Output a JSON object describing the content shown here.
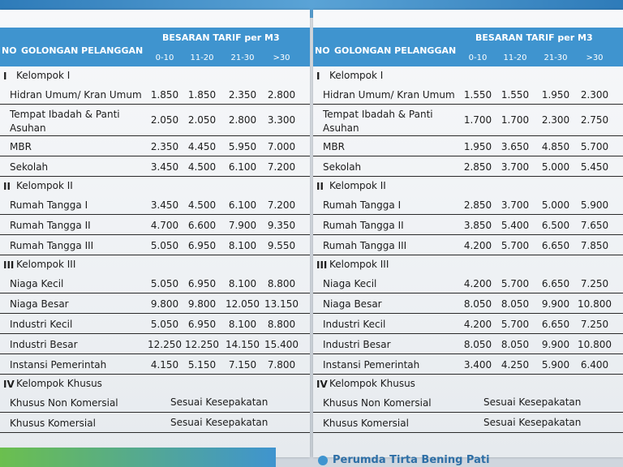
{
  "header": {
    "no": "NO",
    "golongan": "GOLONGAN PELANGGAN",
    "tarif": "BESARAN TARIF per M3",
    "ranges": [
      "0-10",
      "11-20",
      "21-30",
      ">30"
    ]
  },
  "left_rows": [
    {
      "type": "group",
      "no": "I",
      "name": "Kelompok I"
    },
    {
      "type": "row",
      "name": "Hidran Umum/ Kran Umum",
      "values": [
        "1.850",
        "1.850",
        "2.350",
        "2.800"
      ]
    },
    {
      "type": "tall",
      "name": "Tempat Ibadah & Panti Asuhan",
      "values": [
        "2.050",
        "2.050",
        "2.800",
        "3.300"
      ]
    },
    {
      "type": "row",
      "name": "MBR",
      "values": [
        "2.350",
        "4.450",
        "5.950",
        "7.000"
      ]
    },
    {
      "type": "row",
      "name": "Sekolah",
      "values": [
        "3.450",
        "4.500",
        "6.100",
        "7.200"
      ]
    },
    {
      "type": "group",
      "no": "II",
      "name": "Kelompok II"
    },
    {
      "type": "row",
      "name": "Rumah Tangga I",
      "values": [
        "3.450",
        "4.500",
        "6.100",
        "7.200"
      ]
    },
    {
      "type": "row",
      "name": "Rumah Tangga II",
      "values": [
        "4.700",
        "6.600",
        "7.900",
        "9.350"
      ]
    },
    {
      "type": "row",
      "name": "Rumah Tangga III",
      "values": [
        "5.050",
        "6.950",
        "8.100",
        "9.550"
      ]
    },
    {
      "type": "group",
      "no": "III",
      "name": "Kelompok III"
    },
    {
      "type": "row",
      "name": "Niaga Kecil",
      "values": [
        "5.050",
        "6.950",
        "8.100",
        "8.800"
      ]
    },
    {
      "type": "row",
      "name": "Niaga Besar",
      "values": [
        "9.800",
        "9.800",
        "12.050",
        "13.150"
      ]
    },
    {
      "type": "row",
      "name": "Industri Kecil",
      "values": [
        "5.050",
        "6.950",
        "8.100",
        "8.800"
      ]
    },
    {
      "type": "row",
      "name": "Industri Besar",
      "values": [
        "12.250",
        "12.250",
        "14.150",
        "15.400"
      ]
    },
    {
      "type": "row",
      "name": "Instansi Pemerintah",
      "values": [
        "4.150",
        "5.150",
        "7.150",
        "7.800"
      ]
    },
    {
      "type": "group",
      "no": "IV",
      "name": "Kelompok Khusus"
    },
    {
      "type": "merged",
      "name": "Khusus Non Komersial",
      "text": "Sesuai Kesepakatan"
    },
    {
      "type": "merged",
      "name": "Khusus Komersial",
      "text": "Sesuai Kesepakatan"
    }
  ],
  "right_rows": [
    {
      "type": "group",
      "no": "I",
      "name": "Kelompok I"
    },
    {
      "type": "row",
      "name": "Hidran Umum/ Kran Umum",
      "values": [
        "1.550",
        "1.550",
        "1.950",
        "2.300"
      ]
    },
    {
      "type": "tall",
      "name": "Tempat Ibadah & Panti Asuhan",
      "values": [
        "1.700",
        "1.700",
        "2.300",
        "2.750"
      ]
    },
    {
      "type": "row",
      "name": "MBR",
      "values": [
        "1.950",
        "3.650",
        "4.850",
        "5.700"
      ]
    },
    {
      "type": "row",
      "name": "Sekolah",
      "values": [
        "2.850",
        "3.700",
        "5.000",
        "5.450"
      ]
    },
    {
      "type": "group",
      "no": "II",
      "name": "Kelompok II"
    },
    {
      "type": "row",
      "name": "Rumah Tangga I",
      "values": [
        "2.850",
        "3.700",
        "5.000",
        "5.900"
      ]
    },
    {
      "type": "row",
      "name": "Rumah Tangga II",
      "values": [
        "3.850",
        "5.400",
        "6.500",
        "7.650"
      ]
    },
    {
      "type": "row",
      "name": "Rumah Tangga III",
      "values": [
        "4.200",
        "5.700",
        "6.650",
        "7.850"
      ]
    },
    {
      "type": "group",
      "no": "III",
      "name": "Kelompok III"
    },
    {
      "type": "row",
      "name": "Niaga Kecil",
      "values": [
        "4.200",
        "5.700",
        "6.650",
        "7.250"
      ]
    },
    {
      "type": "row",
      "name": "Niaga Besar",
      "values": [
        "8.050",
        "8.050",
        "9.900",
        "10.800"
      ]
    },
    {
      "type": "row",
      "name": "Industri Kecil",
      "values": [
        "4.200",
        "5.700",
        "6.650",
        "7.250"
      ]
    },
    {
      "type": "row",
      "name": "Industri Besar",
      "values": [
        "8.050",
        "8.050",
        "9.900",
        "10.800"
      ]
    },
    {
      "type": "row",
      "name": "Instansi Pemerintah",
      "values": [
        "3.400",
        "4.250",
        "5.900",
        "6.400"
      ]
    },
    {
      "type": "group",
      "no": "IV",
      "name": "Kelompok Khusus"
    },
    {
      "type": "merged",
      "name": "Khusus Non Komersial",
      "text": "Sesuai Kesepakatan"
    },
    {
      "type": "merged",
      "name": "Khusus Komersial",
      "text": "Sesuai Kesepakatan"
    }
  ],
  "footer": {
    "text": "Perumda Tirta Bening Pati"
  },
  "colors": {
    "header": "#3f94cf",
    "accent_green": "#6bbf4e"
  }
}
